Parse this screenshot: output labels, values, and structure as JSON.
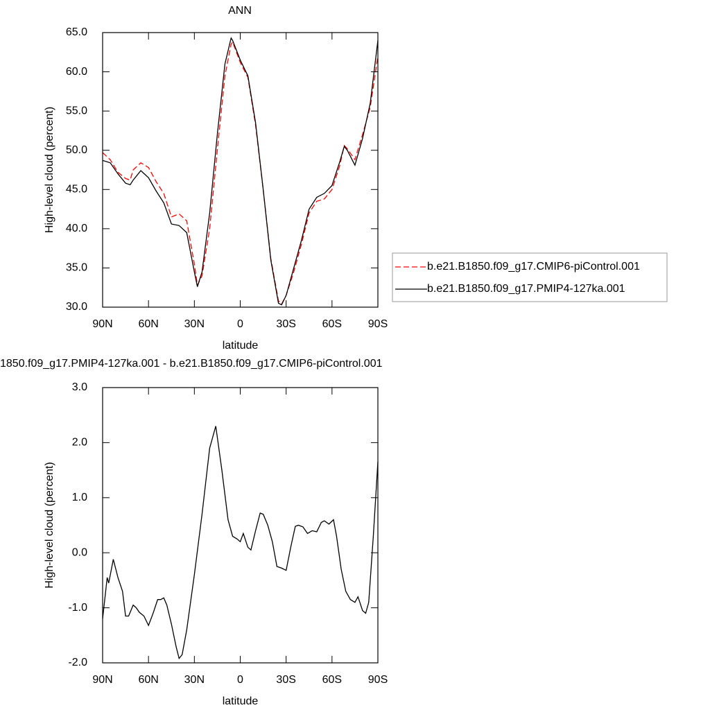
{
  "chart_data": [
    {
      "type": "line",
      "title": "ANN",
      "xlabel": "latitude",
      "ylabel": "High-level cloud (percent)",
      "x": [
        90,
        85,
        80,
        75,
        72,
        70,
        65,
        60,
        55,
        50,
        45,
        40,
        35,
        30,
        28,
        25,
        20,
        15,
        10,
        6,
        5,
        0,
        -5,
        -10,
        -15,
        -20,
        -25,
        -27,
        -30,
        -35,
        -40,
        -45,
        -50,
        -55,
        -60,
        -65,
        -68,
        -70,
        -75,
        -80,
        -85,
        -90
      ],
      "series": [
        {
          "name": "b.e21.B1850.f09_g17.CMIP6-piControl.001",
          "color": "#ff0000",
          "dash": "dashed",
          "values": [
            49.7,
            48.8,
            47.2,
            46.4,
            46.2,
            47.5,
            48.4,
            47.8,
            46,
            44.5,
            41.5,
            41.9,
            41,
            35.5,
            32.8,
            34,
            40,
            50,
            59.5,
            63.5,
            63.8,
            61.2,
            59.3,
            53.2,
            45,
            36.2,
            30.8,
            30.4,
            31.5,
            34.5,
            38,
            42,
            43.5,
            43.8,
            45,
            48,
            50.6,
            50.2,
            48.8,
            52,
            55.5,
            62
          ]
        },
        {
          "name": "b.e21.B1850.f09_g17.PMIP4-127ka.001",
          "color": "#000000",
          "dash": "solid",
          "values": [
            48.7,
            48.4,
            47,
            45.8,
            45.6,
            46.2,
            47.4,
            46.5,
            44.8,
            43.3,
            40.6,
            40.4,
            39.5,
            34.5,
            32.6,
            34.5,
            42,
            52,
            61,
            64.3,
            64,
            61.5,
            59.5,
            53.5,
            45,
            36,
            30.5,
            30.3,
            31.5,
            35,
            38.5,
            42.5,
            44,
            44.5,
            45.5,
            48.5,
            50.5,
            50,
            48.1,
            51.5,
            56,
            64
          ]
        }
      ],
      "xlim": [
        90,
        -90
      ],
      "xticks": [
        {
          "value": 90,
          "label": "90N"
        },
        {
          "value": 60,
          "label": "60N"
        },
        {
          "value": 30,
          "label": "30N"
        },
        0,
        {
          "value": -30,
          "label": "30S"
        },
        {
          "value": -60,
          "label": "60S"
        },
        {
          "value": -90,
          "label": "90S"
        }
      ],
      "ylim": [
        30,
        65
      ],
      "yticks": [
        {
          "value": 30,
          "label": "30.0"
        },
        {
          "value": 35,
          "label": "35.0"
        },
        {
          "value": 40,
          "label": "40.0"
        },
        {
          "value": 45,
          "label": "45.0"
        },
        {
          "value": 50,
          "label": "50.0"
        },
        {
          "value": 55,
          "label": "55.0"
        },
        {
          "value": 60,
          "label": "60.0"
        },
        {
          "value": 65,
          "label": "65.0"
        }
      ],
      "legend": "right"
    },
    {
      "type": "line",
      "title": "1850.f09_g17.PMIP4-127ka.001 - b.e21.B1850.f09_g17.CMIP6-piControl.001",
      "xlabel": "latitude",
      "ylabel": "High-level cloud (percent)",
      "x": [
        90,
        87,
        86,
        83,
        80,
        77,
        75,
        73,
        70,
        68,
        66,
        63,
        60,
        57,
        54,
        52,
        50,
        48,
        45,
        42,
        40,
        38,
        35,
        30,
        25,
        20,
        16,
        12,
        8,
        5,
        2,
        0,
        -2,
        -5,
        -7,
        -10,
        -13,
        -15,
        -18,
        -21,
        -24,
        -27,
        -30,
        -33,
        -36,
        -38,
        -41,
        -44,
        -47,
        -50,
        -53,
        -55,
        -58,
        -61,
        -63,
        -66,
        -69,
        -72,
        -75,
        -77,
        -80,
        -82,
        -84,
        -87,
        -90
      ],
      "series": [
        {
          "color": "#000000",
          "dash": "solid",
          "values": [
            -1.2,
            -0.45,
            -0.55,
            -0.12,
            -0.45,
            -0.7,
            -1.15,
            -1.15,
            -0.95,
            -1.0,
            -1.08,
            -1.15,
            -1.32,
            -1.1,
            -0.85,
            -0.85,
            -0.82,
            -0.95,
            -1.3,
            -1.7,
            -1.92,
            -1.85,
            -1.4,
            -0.4,
            0.7,
            1.9,
            2.3,
            1.5,
            0.6,
            0.3,
            0.25,
            0.2,
            0.35,
            0.1,
            0.05,
            0.4,
            0.72,
            0.7,
            0.5,
            0.2,
            -0.25,
            -0.28,
            -0.32,
            0.1,
            0.48,
            0.5,
            0.47,
            0.35,
            0.4,
            0.38,
            0.55,
            0.58,
            0.52,
            0.6,
            0.3,
            -0.3,
            -0.7,
            -0.85,
            -0.9,
            -0.8,
            -1.05,
            -1.1,
            -0.9,
            0.3,
            1.65
          ]
        }
      ],
      "xlim": [
        90,
        -90
      ],
      "xticks": [
        {
          "value": 90,
          "label": "90N"
        },
        {
          "value": 60,
          "label": "60N"
        },
        {
          "value": 30,
          "label": "30N"
        },
        0,
        {
          "value": -30,
          "label": "30S"
        },
        {
          "value": -60,
          "label": "60S"
        },
        {
          "value": -90,
          "label": "90S"
        }
      ],
      "ylim": [
        -2,
        3
      ],
      "yticks": [
        {
          "value": -2,
          "label": "-2.0"
        },
        {
          "value": -1,
          "label": "-1.0"
        },
        {
          "value": 0,
          "label": "0.0"
        },
        {
          "value": 1,
          "label": "1.0"
        },
        {
          "value": 2,
          "label": "2.0"
        },
        {
          "value": 3,
          "label": "3.0"
        }
      ]
    }
  ]
}
